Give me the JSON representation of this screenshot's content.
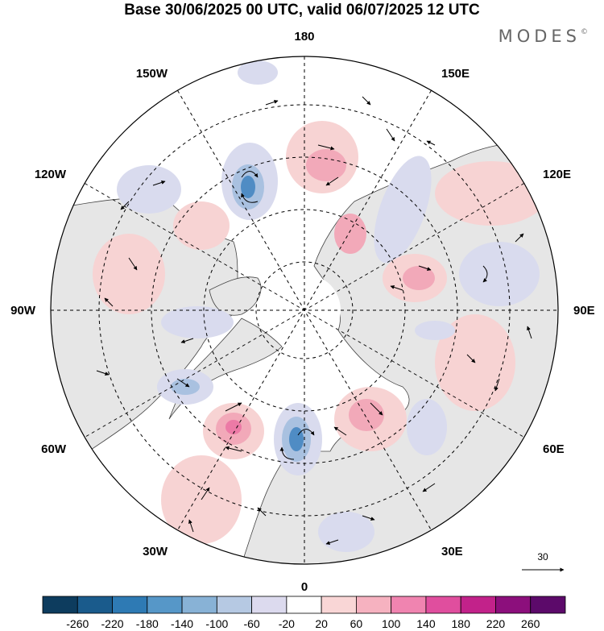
{
  "title": "Base 30/06/2025 00 UTC, valid 06/07/2025 12 UTC",
  "brand": "MODES",
  "brand_mark": "©",
  "longitude_labels": {
    "top": "180",
    "bottom": "0",
    "left": "90W",
    "right": "90E",
    "upper_left_1": "150W",
    "upper_left_2": "120W",
    "upper_right_1": "150E",
    "upper_right_2": "120E",
    "lower_left_1": "60W",
    "lower_left_2": "30W",
    "lower_right_1": "60E",
    "lower_right_2": "30E"
  },
  "reference_vector": {
    "label": "30"
  },
  "colorbar": {
    "ticks": [
      "-260",
      "-220",
      "-180",
      "-140",
      "-100",
      "-60",
      "-20",
      "20",
      "60",
      "100",
      "140",
      "180",
      "220",
      "260"
    ],
    "colors": [
      "#0d3c5e",
      "#1a5b8c",
      "#2e7ab4",
      "#5697c8",
      "#88b2d6",
      "#b6c9e3",
      "#dcdaee",
      "#ffffff",
      "#f9d6d6",
      "#f6b2c0",
      "#f084b0",
      "#e04e9e",
      "#c2228a",
      "#8c0f7c",
      "#5c0a6a"
    ]
  },
  "map_colors": {
    "land": "#e6e6e6",
    "ocean": "#ffffff",
    "positive_weak": "#f7d3d3",
    "positive_mid": "#f2a9b9",
    "positive_strong": "#ec7aa6",
    "negative_weak": "#d9dbee",
    "negative_mid": "#a9c1e0",
    "negative_strong": "#4f8cc4"
  }
}
